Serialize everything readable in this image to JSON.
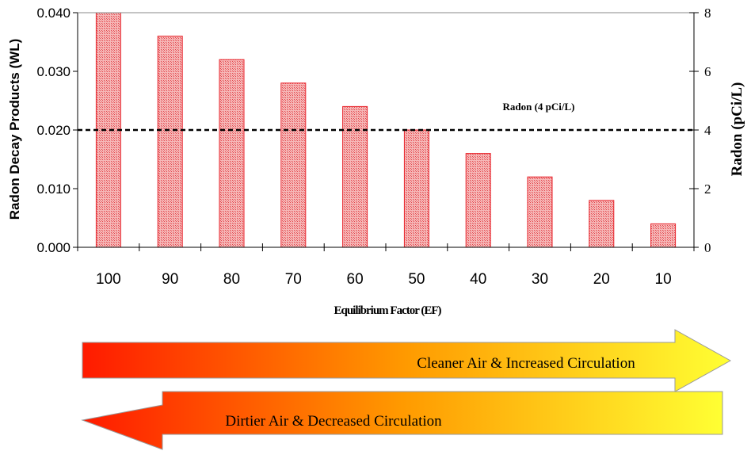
{
  "chart_data": {
    "type": "bar",
    "categories": [
      "100",
      "90",
      "80",
      "70",
      "60",
      "50",
      "40",
      "30",
      "20",
      "10"
    ],
    "values": [
      0.04,
      0.036,
      0.032,
      0.028,
      0.024,
      0.02,
      0.016,
      0.012,
      0.008,
      0.004
    ],
    "xlabel": "Equilibrium Factor (EF)",
    "ylabel": "Radon Decay Products (WL)",
    "y2label": "Radon (pCi/L)",
    "ylim": [
      0,
      0.04
    ],
    "y2lim": [
      0,
      8
    ],
    "yticks": [
      "0.000",
      "0.010",
      "0.020",
      "0.030",
      "0.040"
    ],
    "y2ticks": [
      "0",
      "2",
      "4",
      "6",
      "8"
    ],
    "reference_line": {
      "label": "Radon (4 pCi/L)",
      "y2_value": 4
    },
    "grid": false,
    "bar_color": "#e8222a",
    "bar_fill": "#f29a9a"
  },
  "arrows": {
    "right_label": "Cleaner Air & Increased Circulation",
    "left_label": "Dirtier Air & Decreased Circulation",
    "color_red": "#ff1a00",
    "color_orange": "#ff8c00",
    "color_yellow": "#ffff33"
  }
}
